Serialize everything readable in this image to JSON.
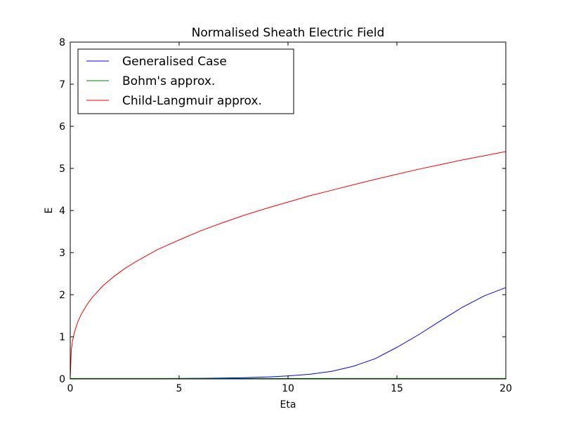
{
  "chart_data": {
    "type": "line",
    "title": "Normalised Sheath Electric Field",
    "xlabel": "Eta",
    "ylabel": "E",
    "xlim": [
      0,
      20
    ],
    "ylim": [
      0,
      8
    ],
    "x_ticks": [
      "0",
      "5",
      "10",
      "15",
      "20"
    ],
    "y_ticks": [
      "0",
      "1",
      "2",
      "3",
      "4",
      "5",
      "6",
      "7",
      "8"
    ],
    "grid": false,
    "legend_position": "top-left",
    "series": [
      {
        "name": "Generalised Case",
        "color": "#0000ff",
        "x": [
          0,
          1,
          2,
          3,
          4,
          5,
          6,
          7,
          8,
          9,
          10,
          11,
          12,
          13,
          14,
          15,
          16,
          17,
          18,
          19,
          20
        ],
        "y": [
          0.0,
          0.0,
          0.0,
          0.005,
          0.008,
          0.01,
          0.015,
          0.02,
          0.03,
          0.045,
          0.07,
          0.11,
          0.18,
          0.3,
          0.48,
          0.75,
          1.05,
          1.38,
          1.7,
          1.97,
          2.17
        ]
      },
      {
        "name": "Bohm's approx.",
        "color": "#008000",
        "x": [
          0,
          20
        ],
        "y": [
          0.01,
          0.01
        ]
      },
      {
        "name": "Child-Langmuir approx.",
        "color": "#ff0000",
        "x": [
          0,
          0.05,
          0.1,
          0.2,
          0.35,
          0.5,
          0.75,
          1,
          1.5,
          2,
          2.5,
          3,
          4,
          5,
          6,
          7,
          8,
          9,
          10,
          11,
          12,
          13,
          14,
          15,
          16,
          17,
          18,
          19,
          20
        ],
        "y": [
          0.0,
          0.7,
          0.89,
          1.12,
          1.36,
          1.53,
          1.75,
          1.93,
          2.21,
          2.43,
          2.62,
          2.78,
          3.07,
          3.3,
          3.52,
          3.71,
          3.89,
          4.05,
          4.2,
          4.35,
          4.48,
          4.61,
          4.74,
          4.86,
          4.98,
          5.09,
          5.2,
          5.3,
          5.4
        ]
      }
    ]
  }
}
